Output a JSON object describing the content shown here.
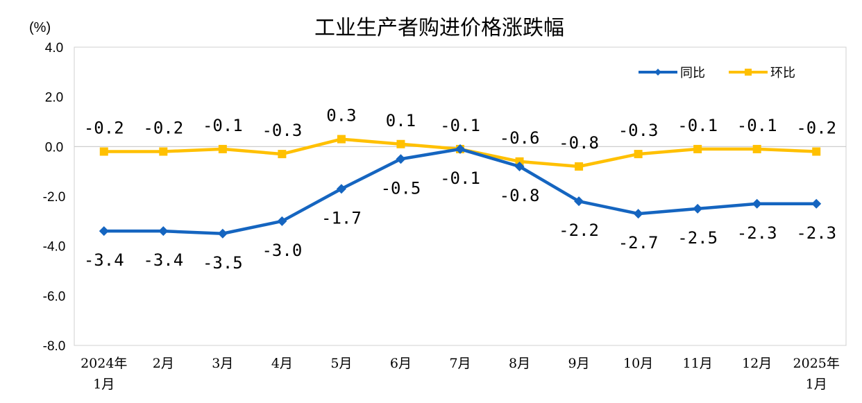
{
  "chart_data": {
    "type": "line",
    "title": "工业生产者购进价格涨跌幅",
    "unit_label": "(%)",
    "categories": [
      [
        "2024年",
        "1月"
      ],
      [
        "2月"
      ],
      [
        "3月"
      ],
      [
        "4月"
      ],
      [
        "5月"
      ],
      [
        "6月"
      ],
      [
        "7月"
      ],
      [
        "8月"
      ],
      [
        "9月"
      ],
      [
        "10月"
      ],
      [
        "11月"
      ],
      [
        "12月"
      ],
      [
        "2025年",
        "1月"
      ]
    ],
    "y_ticks": [
      "4.0",
      "2.0",
      "0.0",
      "-2.0",
      "-4.0",
      "-6.0",
      "-8.0"
    ],
    "ylim": [
      -8.0,
      4.0
    ],
    "legend_position": "top-right",
    "series": [
      {
        "name": "同比",
        "color": "#1565C0",
        "marker": "diamond",
        "values": [
          -3.4,
          -3.4,
          -3.5,
          -3.0,
          -1.7,
          -0.5,
          -0.1,
          -0.8,
          -2.2,
          -2.7,
          -2.5,
          -2.3,
          -2.3
        ],
        "labels": [
          "-3.4",
          "-3.4",
          "-3.5",
          "-3.0",
          "-1.7",
          "-0.5",
          "-0.1",
          "-0.8",
          "-2.2",
          "-2.7",
          "-2.5",
          "-2.3",
          "-2.3"
        ]
      },
      {
        "name": "环比",
        "color": "#FFC000",
        "marker": "square",
        "values": [
          -0.2,
          -0.2,
          -0.1,
          -0.3,
          0.3,
          0.1,
          -0.1,
          -0.6,
          -0.8,
          -0.3,
          -0.1,
          -0.1,
          -0.2
        ],
        "labels": [
          "-0.2",
          "-0.2",
          "-0.1",
          "-0.3",
          "0.3",
          "0.1",
          "-0.1",
          "-0.6",
          "-0.8",
          "-0.3",
          "-0.1",
          "-0.1",
          "-0.2"
        ]
      }
    ]
  }
}
